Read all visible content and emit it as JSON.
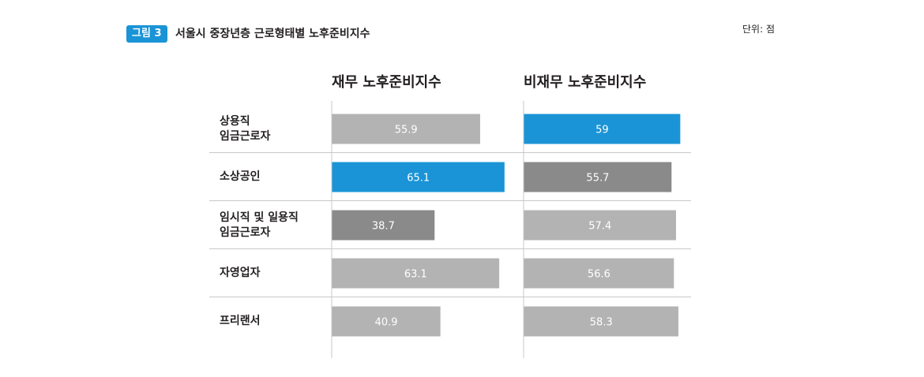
{
  "header": {
    "figure_badge": "그림 3",
    "title": "서울시 중장년층 근로형태별 노후준비지수",
    "unit": "단위: 점"
  },
  "colors": {
    "accent_blue": "#1a94d6",
    "highlight_dark": "#8a8a8a",
    "bar_default": "#b3b3b3",
    "divider": "#c8c8c8"
  },
  "chart_data": {
    "type": "bar",
    "orientation": "horizontal",
    "categories": [
      "상용직\n임금근로자",
      "소상공인",
      "임시직 및 일용직\n임금근로자",
      "자영업자",
      "프리랜서"
    ],
    "category_lines": [
      [
        "상용직",
        "임금근로자"
      ],
      [
        "소상공인"
      ],
      [
        "임시직 및 일용직",
        "임금근로자"
      ],
      [
        "자영업자"
      ],
      [
        "프리랜서"
      ]
    ],
    "series": [
      {
        "name": "재무 노후준비지수",
        "values": [
          55.9,
          65.1,
          38.7,
          63.1,
          40.9
        ],
        "value_labels": [
          "55.9",
          "65.1",
          "38.7",
          "63.1",
          "40.9"
        ],
        "bar_styles": [
          "default",
          "max",
          "min",
          "default",
          "default"
        ]
      },
      {
        "name": "비재무 노후준비지수",
        "values": [
          59,
          55.7,
          57.4,
          56.6,
          58.3
        ],
        "value_labels": [
          "59",
          "55.7",
          "57.4",
          "56.6",
          "58.3"
        ],
        "bar_styles": [
          "max",
          "min",
          "default",
          "default",
          "default"
        ]
      }
    ],
    "xlim": [
      0,
      65
    ],
    "grid": false,
    "legend": "none"
  }
}
